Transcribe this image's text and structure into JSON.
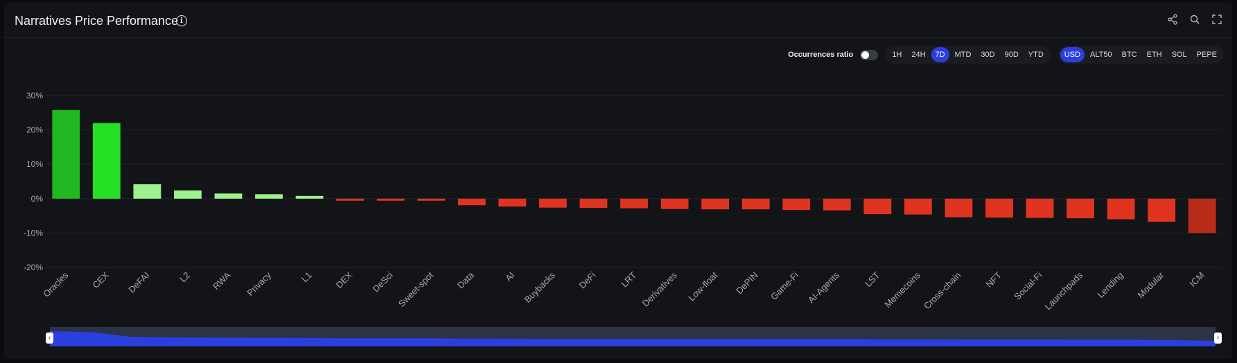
{
  "header": {
    "title": "Narratives Price Performance",
    "info_glyph": "i",
    "icons": [
      "share-icon",
      "zoom-icon",
      "fullscreen-icon"
    ]
  },
  "controls": {
    "occurrences_label": "Occurrences ratio",
    "occurrences_on": false,
    "timeframes": [
      "1H",
      "24H",
      "7D",
      "MTD",
      "30D",
      "90D",
      "YTD"
    ],
    "active_timeframe": "7D",
    "currencies": [
      "USD",
      "ALT50",
      "BTC",
      "ETH",
      "SOL",
      "PEPE"
    ],
    "active_currency": "USD",
    "accent_color": "#2b3fe0"
  },
  "chart_data": {
    "type": "bar",
    "categories": [
      "Oracles",
      "CEX",
      "DeFAI",
      "L2",
      "RWA",
      "Privacy",
      "L1",
      "DEX",
      "DeSci",
      "Sweet-spot",
      "Data",
      "AI",
      "Buybacks",
      "DeFi",
      "LRT",
      "Derivatives",
      "Low-float",
      "DePIN",
      "Game-Fi",
      "AI-Agents",
      "LST",
      "Memecoins",
      "Cross-chain",
      "NFT",
      "Social-Fi",
      "Launchpads",
      "Lending",
      "Modular",
      "ICM"
    ],
    "values": [
      25.8,
      22.0,
      4.2,
      2.4,
      1.5,
      1.3,
      0.8,
      -0.6,
      -0.6,
      -0.6,
      -1.9,
      -2.3,
      -2.6,
      -2.7,
      -2.8,
      -3.0,
      -3.1,
      -3.1,
      -3.3,
      -3.4,
      -4.5,
      -4.6,
      -5.4,
      -5.5,
      -5.6,
      -5.7,
      -6.0,
      -6.7,
      -10.0
    ],
    "yticks": [
      "30%",
      "20%",
      "10%",
      "0%",
      "-10%",
      "-20%"
    ],
    "ylim": [
      -20,
      30
    ],
    "grid": true,
    "colors": {
      "strong_positive": "#1fb81f",
      "positive": "#26e026",
      "mild_positive": "#9cf28c",
      "negative": "#e03421",
      "strong_negative": "#b82c19"
    }
  }
}
